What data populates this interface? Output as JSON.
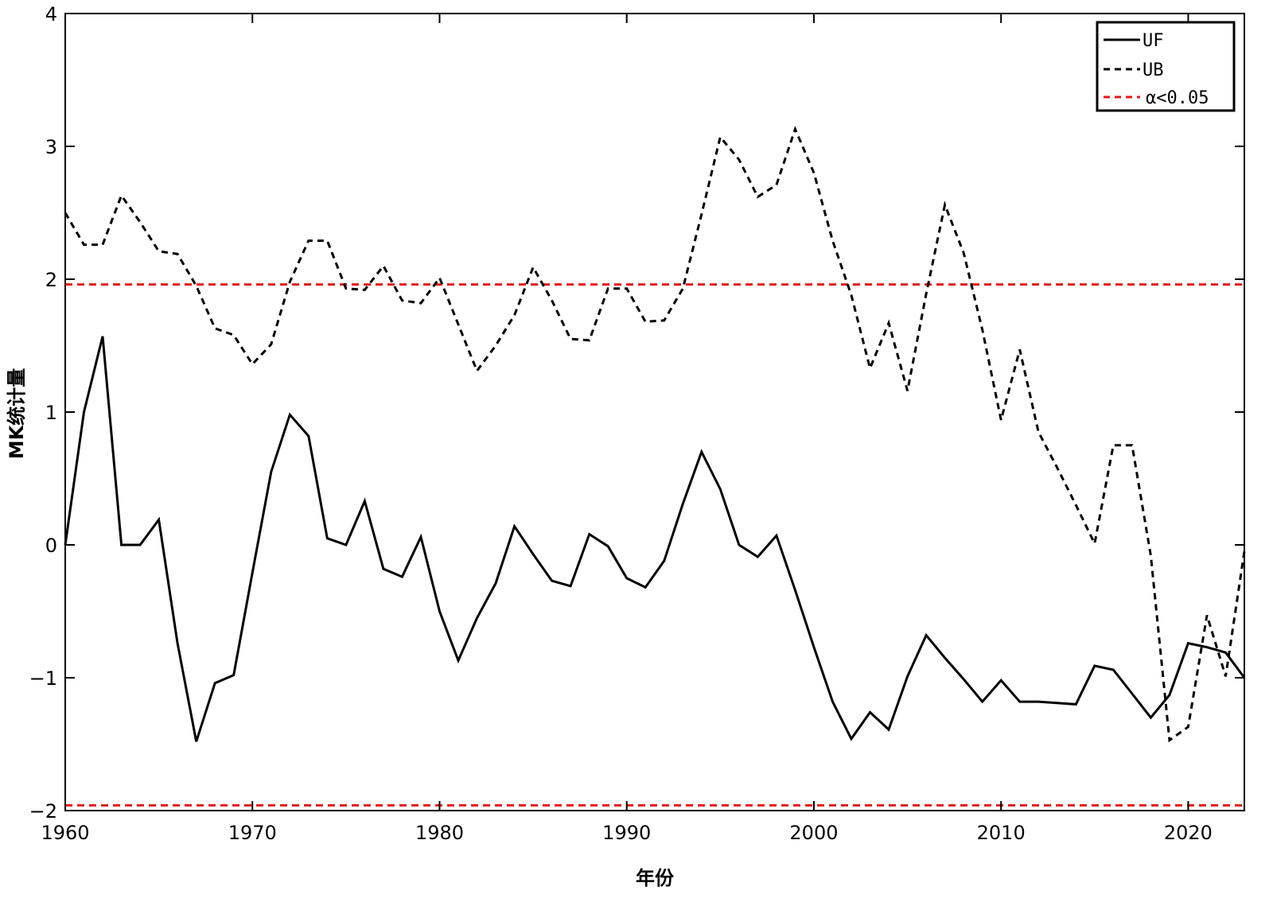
{
  "chart_data": {
    "type": "line",
    "title": "",
    "xlabel": "年份",
    "ylabel": "MK统计量",
    "xlim": [
      1960,
      2023
    ],
    "ylim": [
      -2,
      4
    ],
    "xticks": [
      1960,
      1970,
      1980,
      1990,
      2000,
      2010,
      2020
    ],
    "yticks": [
      -2,
      -1,
      0,
      1,
      2,
      3,
      4
    ],
    "ytick_labels": [
      "−2",
      "−1",
      "0",
      "1",
      "2",
      "3",
      "4"
    ],
    "grid": false,
    "legend_position": "top-right",
    "x": [
      1960,
      1961,
      1962,
      1963,
      1964,
      1965,
      1966,
      1967,
      1968,
      1969,
      1970,
      1971,
      1972,
      1973,
      1974,
      1975,
      1976,
      1977,
      1978,
      1979,
      1980,
      1981,
      1982,
      1983,
      1984,
      1985,
      1986,
      1987,
      1988,
      1989,
      1990,
      1991,
      1992,
      1993,
      1994,
      1995,
      1996,
      1997,
      1998,
      1999,
      2000,
      2001,
      2002,
      2003,
      2004,
      2005,
      2006,
      2007,
      2008,
      2009,
      2010,
      2011,
      2012,
      2013,
      2014,
      2015,
      2016,
      2017,
      2018,
      2019,
      2020,
      2021,
      2022,
      2023
    ],
    "series": [
      {
        "name": "UF",
        "style": "solid",
        "color": "#000000",
        "values": [
          0,
          1.0,
          1.57,
          0,
          0,
          0.19,
          -0.74,
          -1.48,
          -1.04,
          -0.98,
          -0.21,
          0.55,
          0.98,
          0.82,
          0.05,
          0,
          0.33,
          -0.18,
          -0.24,
          0.06,
          -0.5,
          -0.87,
          -0.55,
          -0.29,
          0.14,
          -0.07,
          -0.27,
          -0.31,
          0.08,
          -0.01,
          -0.25,
          -0.32,
          -0.12,
          0.31,
          0.7,
          0.42,
          0,
          -0.09,
          0.07,
          -0.34,
          -0.77,
          -1.18,
          -1.46,
          -1.26,
          -1.39,
          -0.99,
          -0.68,
          -0.85,
          -1.01,
          -1.18,
          -1.02,
          -1.18,
          -1.18,
          -1.19,
          -1.2,
          -0.91,
          -0.94,
          -1.12,
          -1.3,
          -1.13,
          -0.74,
          -0.77,
          -0.81,
          -1.0
        ]
      },
      {
        "name": "UB",
        "style": "dashed",
        "color": "#000000",
        "values": [
          2.5,
          2.26,
          2.26,
          2.63,
          2.43,
          2.21,
          2.19,
          1.95,
          1.63,
          1.58,
          1.36,
          1.51,
          1.98,
          2.29,
          2.29,
          1.93,
          1.92,
          2.1,
          1.84,
          1.82,
          2.01,
          1.66,
          1.31,
          1.5,
          1.73,
          2.09,
          1.84,
          1.55,
          1.54,
          1.93,
          1.93,
          1.68,
          1.69,
          1.93,
          2.49,
          3.07,
          2.9,
          2.62,
          2.71,
          3.13,
          2.8,
          2.29,
          1.88,
          1.33,
          1.67,
          1.16,
          1.89,
          2.56,
          2.2,
          1.62,
          0.94,
          1.47,
          0.85,
          0.58,
          0.3,
          0.01,
          0.75,
          0.75,
          -0.08,
          -1.47,
          -1.37,
          -0.53,
          -0.99,
          -0.05
        ]
      }
    ],
    "reference_lines": {
      "name": "α<0.05",
      "color": "#e41a1c",
      "style": "dashed",
      "values": [
        1.96,
        -1.96
      ]
    },
    "legend": {
      "uf": "UF",
      "ub": "UB",
      "alpha": "α<0.05"
    }
  }
}
